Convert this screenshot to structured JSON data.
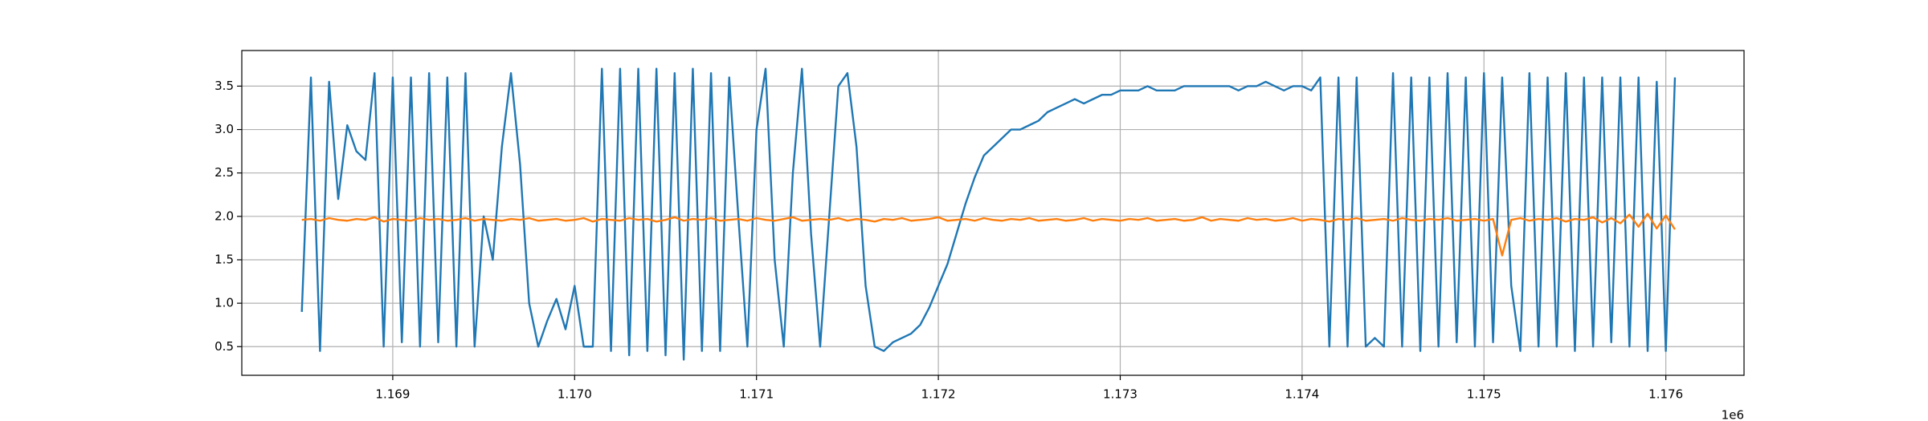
{
  "chart_data": {
    "type": "line",
    "x": [
      1168500,
      1168550,
      1168600,
      1168650,
      1168700,
      1168750,
      1168800,
      1168850,
      1168900,
      1168950,
      1169000,
      1169050,
      1169100,
      1169150,
      1169200,
      1169250,
      1169300,
      1169350,
      1169400,
      1169450,
      1169500,
      1169550,
      1169600,
      1169650,
      1169700,
      1169750,
      1169800,
      1169850,
      1169900,
      1169950,
      1170000,
      1170050,
      1170100,
      1170150,
      1170200,
      1170250,
      1170300,
      1170350,
      1170400,
      1170450,
      1170500,
      1170550,
      1170600,
      1170650,
      1170700,
      1170750,
      1170800,
      1170850,
      1170900,
      1170950,
      1171000,
      1171050,
      1171100,
      1171150,
      1171200,
      1171250,
      1171300,
      1171350,
      1171400,
      1171450,
      1171500,
      1171550,
      1171600,
      1171650,
      1171700,
      1171750,
      1171800,
      1171850,
      1171900,
      1171950,
      1172000,
      1172050,
      1172100,
      1172150,
      1172200,
      1172250,
      1172300,
      1172350,
      1172400,
      1172450,
      1172500,
      1172550,
      1172600,
      1172650,
      1172700,
      1172750,
      1172800,
      1172850,
      1172900,
      1172950,
      1173000,
      1173050,
      1173100,
      1173150,
      1173200,
      1173250,
      1173300,
      1173350,
      1173400,
      1173450,
      1173500,
      1173550,
      1173600,
      1173650,
      1173700,
      1173750,
      1173800,
      1173850,
      1173900,
      1173950,
      1174000,
      1174050,
      1174100,
      1174150,
      1174200,
      1174250,
      1174300,
      1174350,
      1174400,
      1174450,
      1174500,
      1174550,
      1174600,
      1174650,
      1174700,
      1174750,
      1174800,
      1174850,
      1174900,
      1174950,
      1175000,
      1175050,
      1175100,
      1175150,
      1175200,
      1175250,
      1175300,
      1175350,
      1175400,
      1175450,
      1175500,
      1175550,
      1175600,
      1175650,
      1175700,
      1175750,
      1175800,
      1175850,
      1175900,
      1175950,
      1176000,
      1176050
    ],
    "series": [
      {
        "color": "#1f77b4",
        "values": [
          0.9,
          3.6,
          0.45,
          3.55,
          2.2,
          3.05,
          2.75,
          2.65,
          3.65,
          0.5,
          3.6,
          0.55,
          3.6,
          0.5,
          3.65,
          0.55,
          3.6,
          0.5,
          3.65,
          0.5,
          2.0,
          1.5,
          2.8,
          3.65,
          2.6,
          1.0,
          0.5,
          0.8,
          1.05,
          0.7,
          1.2,
          0.5,
          0.5,
          3.7,
          0.45,
          3.7,
          0.4,
          3.7,
          0.45,
          3.7,
          0.4,
          3.65,
          0.35,
          3.7,
          0.45,
          3.65,
          0.45,
          3.6,
          2.0,
          0.5,
          3.0,
          3.7,
          1.5,
          0.5,
          2.5,
          3.7,
          1.8,
          0.5,
          2.0,
          3.5,
          3.65,
          2.8,
          1.2,
          0.5,
          0.45,
          0.55,
          0.6,
          0.65,
          0.75,
          0.95,
          1.2,
          1.45,
          1.8,
          2.15,
          2.45,
          2.7,
          2.8,
          2.9,
          3.0,
          3.0,
          3.05,
          3.1,
          3.2,
          3.25,
          3.3,
          3.35,
          3.3,
          3.35,
          3.4,
          3.4,
          3.45,
          3.45,
          3.45,
          3.5,
          3.45,
          3.45,
          3.45,
          3.5,
          3.5,
          3.5,
          3.5,
          3.5,
          3.5,
          3.45,
          3.5,
          3.5,
          3.55,
          3.5,
          3.45,
          3.5,
          3.5,
          3.45,
          3.6,
          0.5,
          3.6,
          0.5,
          3.6,
          0.5,
          0.6,
          0.5,
          3.65,
          0.5,
          3.6,
          0.45,
          3.6,
          0.5,
          3.65,
          0.55,
          3.6,
          0.5,
          3.65,
          0.55,
          3.6,
          1.2,
          0.45,
          3.65,
          0.5,
          3.6,
          0.5,
          3.65,
          0.45,
          3.6,
          0.5,
          3.6,
          0.55,
          3.6,
          0.5,
          3.6,
          0.45,
          3.55,
          0.45,
          3.6
        ]
      },
      {
        "color": "#ff7f0e",
        "values": [
          1.96,
          1.97,
          1.95,
          1.98,
          1.96,
          1.95,
          1.97,
          1.96,
          1.99,
          1.94,
          1.97,
          1.96,
          1.95,
          1.98,
          1.96,
          1.97,
          1.95,
          1.96,
          1.98,
          1.95,
          1.97,
          1.96,
          1.95,
          1.97,
          1.96,
          1.98,
          1.95,
          1.96,
          1.97,
          1.95,
          1.96,
          1.98,
          1.94,
          1.97,
          1.96,
          1.95,
          1.98,
          1.96,
          1.97,
          1.94,
          1.96,
          1.99,
          1.95,
          1.97,
          1.96,
          1.98,
          1.95,
          1.96,
          1.97,
          1.95,
          1.98,
          1.96,
          1.95,
          1.97,
          1.99,
          1.95,
          1.96,
          1.97,
          1.96,
          1.98,
          1.95,
          1.97,
          1.96,
          1.94,
          1.97,
          1.96,
          1.98,
          1.95,
          1.96,
          1.97,
          1.99,
          1.95,
          1.96,
          1.97,
          1.95,
          1.98,
          1.96,
          1.95,
          1.97,
          1.96,
          1.98,
          1.95,
          1.96,
          1.97,
          1.95,
          1.96,
          1.98,
          1.95,
          1.97,
          1.96,
          1.95,
          1.97,
          1.96,
          1.98,
          1.95,
          1.96,
          1.97,
          1.95,
          1.96,
          1.99,
          1.95,
          1.97,
          1.96,
          1.95,
          1.98,
          1.96,
          1.97,
          1.95,
          1.96,
          1.98,
          1.95,
          1.97,
          1.96,
          1.94,
          1.97,
          1.96,
          1.98,
          1.95,
          1.96,
          1.97,
          1.95,
          1.98,
          1.96,
          1.95,
          1.97,
          1.96,
          1.98,
          1.95,
          1.96,
          1.97,
          1.95,
          1.97,
          1.55,
          1.96,
          1.98,
          1.95,
          1.97,
          1.96,
          1.98,
          1.94,
          1.97,
          1.96,
          1.99,
          1.93,
          1.98,
          1.92,
          2.02,
          1.88,
          2.03,
          1.86,
          2.01,
          1.85
        ]
      }
    ],
    "xlim": [
      1168170,
      1176430
    ],
    "ylim": [
      0.17,
      3.91
    ],
    "xticks": [
      {
        "value": 1169000,
        "label": "1.169"
      },
      {
        "value": 1170000,
        "label": "1.170"
      },
      {
        "value": 1171000,
        "label": "1.171"
      },
      {
        "value": 1172000,
        "label": "1.172"
      },
      {
        "value": 1173000,
        "label": "1.173"
      },
      {
        "value": 1174000,
        "label": "1.174"
      },
      {
        "value": 1175000,
        "label": "1.175"
      },
      {
        "value": 1176000,
        "label": "1.176"
      }
    ],
    "yticks": [
      {
        "value": 0.5,
        "label": "0.5"
      },
      {
        "value": 1.0,
        "label": "1.0"
      },
      {
        "value": 1.5,
        "label": "1.5"
      },
      {
        "value": 2.0,
        "label": "2.0"
      },
      {
        "value": 2.5,
        "label": "2.5"
      },
      {
        "value": 3.0,
        "label": "3.0"
      },
      {
        "value": 3.5,
        "label": "3.5"
      }
    ],
    "x_offset_label": "1e6",
    "grid": true
  }
}
